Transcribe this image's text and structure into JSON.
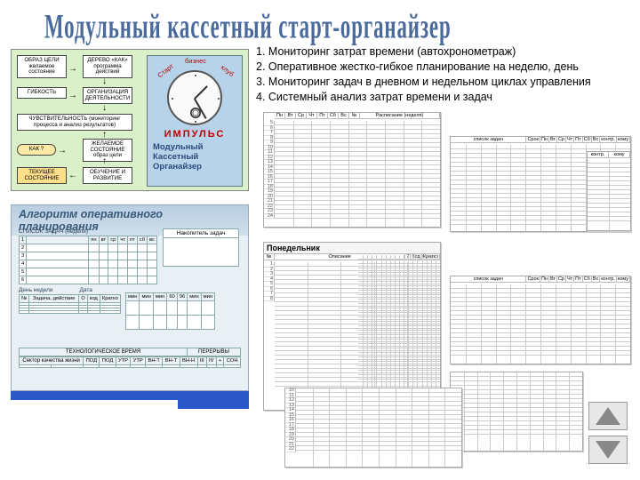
{
  "title": "Модульный кассетный старт-органайзер",
  "features": [
    "1. Мониторинг затрат времени (автохронометраж)",
    "2. Оперативное жестко-гибкое планирование на неделю, день",
    "3. Мониторинг задач в дневном и недельном циклах управления",
    "4. Системный анализ затрат времени и задач"
  ],
  "diagram": {
    "boxes": {
      "obraz": "ОБРАЗ ЦЕЛИ желаемое состояние",
      "derevo": "ДЕРЕВО «КАК» программа действий",
      "gibkost": "ГИБКОСТЬ",
      "orgdeyat": "ОРГАНИЗАЦИЯ ДЕЯТЕЛЬНОСТИ",
      "chuvstv": "ЧУВСТВИТЕЛЬНОСТЬ (мониторинг процесса и анализ результатов)",
      "zhelaemoe": "ЖЕЛАЕМОЕ СОСТОЯНИЕ образ цели",
      "kak": "КАК ?",
      "tekushee": "ТЕКУЩЕЕ СОСТОЯНИЕ",
      "obuchenie": "ОБУЧЕНИЕ И РАЗВИТИЕ"
    },
    "clock": {
      "arc": "Старт · бизнес · клуб",
      "brand": "ИМПУЛЬС",
      "label": "Модульный\nКассетный\nОрганайзер"
    }
  },
  "algorithm": {
    "title": "Алгоритм оперативного планирования",
    "tasklist": {
      "label": "СПИСОК ЗАДАЧ (неделя)",
      "cols": [
        "пн",
        "вт",
        "ср",
        "чт",
        "пт",
        "сб",
        "вс"
      ],
      "rows": 6
    },
    "accumulator": "Накопитель задач",
    "day": {
      "label": "День недели",
      "date": "Дата",
      "cols": [
        "№",
        "Задача, действие",
        "О",
        "код",
        "Кратко"
      ]
    },
    "hours": [
      "мин",
      "мин",
      "мин",
      "60",
      "96",
      "мин",
      "мин"
    ],
    "tech": "ТЕХНОЛОГИЧЕСКОЕ ВРЕМЯ",
    "breaks": "ПЕРЕРЫВЫ",
    "sector": {
      "label": "Сектор качества жизни",
      "cols": [
        "ПОД",
        "ПОД",
        "УТР",
        "УТР",
        "ВН-Т",
        "ВН-Т",
        "ВН-Н",
        "III",
        "IV",
        "+",
        "СОН"
      ]
    }
  },
  "sheets": {
    "week_schedule": {
      "title": "Расписание (неделя)",
      "days": [
        "Пн",
        "Вт",
        "Ср",
        "Чт",
        "Пт",
        "Сб",
        "Вс"
      ],
      "hours_start": 5,
      "hours_end": 24
    },
    "tasklist_right": {
      "title": "список задач",
      "cols": [
        "Срок",
        "Пн",
        "Вт",
        "Ср",
        "Чт",
        "Пт",
        "Сб",
        "Вс",
        "контр.",
        "кому"
      ]
    },
    "tasklist_right2": {
      "title": "список задач",
      "cols": [
        "Срок",
        "Пн",
        "Вт",
        "Ср",
        "Чт",
        "Пт",
        "Сб",
        "Вс",
        "контр.",
        "кому"
      ]
    },
    "monday": {
      "title": "Понедельник",
      "sub": [
        "Описание",
        "7",
        "Код",
        "Кратко"
      ],
      "rows_start": 6,
      "rows_end": 22
    },
    "small_corner": {
      "cols": [
        "контр.",
        "кому"
      ]
    }
  },
  "colors": {
    "title": "#4a6a9c",
    "diagram_bg": "#d9f0c9",
    "clock_bg": "#b7d3ea",
    "algo_bg": "#e8f0f6",
    "accent_blue": "#2a58c8",
    "impulse_red": "#b00000"
  }
}
